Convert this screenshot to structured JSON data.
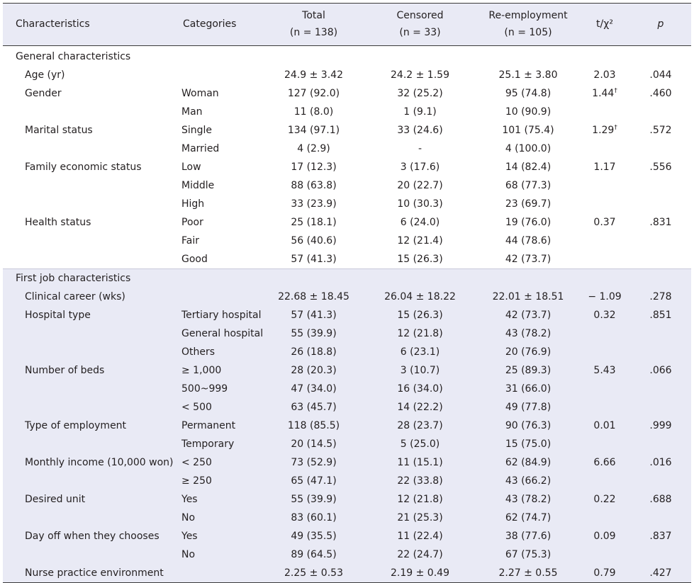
{
  "header": {
    "characteristics": "Characteristics",
    "categories": "Categories",
    "total": "Total",
    "total_n": "(n = 138)",
    "censored": "Censored",
    "censored_n": "(n = 33)",
    "reemployment": "Re-employment",
    "reemployment_n": "(n = 105)",
    "t_chi": "t/χ²",
    "p": "p"
  },
  "sections": [
    {
      "title": "General characteristics",
      "rows": [
        {
          "char": "Age (yr)",
          "cat": "",
          "total": "24.9 ± 3.42",
          "censored": "24.2 ± 1.59",
          "reemp": "25.1 ± 3.80",
          "stat": "2.03",
          "dagger": "",
          "p": ".044"
        },
        {
          "char": "Gender",
          "cat": "Woman",
          "total": "127 (92.0)",
          "censored": "32 (25.2)",
          "reemp": "95 (74.8)",
          "stat": "1.44",
          "dagger": "†",
          "p": ".460"
        },
        {
          "char": "",
          "cat": "Man",
          "total": "11 (8.0)",
          "censored": "1 (9.1)",
          "reemp": "10 (90.9)",
          "stat": "",
          "dagger": "",
          "p": ""
        },
        {
          "char": "Marital status",
          "cat": "Single",
          "total": "134 (97.1)",
          "censored": "33 (24.6)",
          "reemp": "101 (75.4)",
          "stat": "1.29",
          "dagger": "†",
          "p": ".572"
        },
        {
          "char": "",
          "cat": "Married",
          "total": "4 (2.9)",
          "censored": "-",
          "reemp": "4 (100.0)",
          "stat": "",
          "dagger": "",
          "p": ""
        },
        {
          "char": "Family economic status",
          "cat": "Low",
          "total": "17 (12.3)",
          "censored": "3 (17.6)",
          "reemp": "14 (82.4)",
          "stat": "1.17",
          "dagger": "",
          "p": ".556"
        },
        {
          "char": "",
          "cat": "Middle",
          "total": "88 (63.8)",
          "censored": "20 (22.7)",
          "reemp": "68 (77.3)",
          "stat": "",
          "dagger": "",
          "p": ""
        },
        {
          "char": "",
          "cat": "High",
          "total": "33 (23.9)",
          "censored": "10 (30.3)",
          "reemp": "23 (69.7)",
          "stat": "",
          "dagger": "",
          "p": ""
        },
        {
          "char": "Health status",
          "cat": "Poor",
          "total": "25 (18.1)",
          "censored": "6 (24.0)",
          "reemp": "19 (76.0)",
          "stat": "0.37",
          "dagger": "",
          "p": ".831"
        },
        {
          "char": "",
          "cat": "Fair",
          "total": "56 (40.6)",
          "censored": "12 (21.4)",
          "reemp": "44 (78.6)",
          "stat": "",
          "dagger": "",
          "p": ""
        },
        {
          "char": "",
          "cat": "Good",
          "total": "57 (41.3)",
          "censored": "15 (26.3)",
          "reemp": "42 (73.7)",
          "stat": "",
          "dagger": "",
          "p": ""
        }
      ]
    },
    {
      "title": "First job characteristics",
      "rows": [
        {
          "char": "Clinical career (wks)",
          "cat": "",
          "total": "22.68 ± 18.45",
          "censored": "26.04 ± 18.22",
          "reemp": "22.01 ± 18.51",
          "stat": "− 1.09",
          "dagger": "",
          "p": ".278"
        },
        {
          "char": "Hospital type",
          "cat": "Tertiary hospital",
          "total": "57 (41.3)",
          "censored": "15 (26.3)",
          "reemp": "42 (73.7)",
          "stat": "0.32",
          "dagger": "",
          "p": ".851"
        },
        {
          "char": "",
          "cat": "General hospital",
          "total": "55 (39.9)",
          "censored": "12 (21.8)",
          "reemp": "43 (78.2)",
          "stat": "",
          "dagger": "",
          "p": ""
        },
        {
          "char": "",
          "cat": "Others",
          "total": "26 (18.8)",
          "censored": "6 (23.1)",
          "reemp": "20 (76.9)",
          "stat": "",
          "dagger": "",
          "p": ""
        },
        {
          "char": "Number of beds",
          "cat": "≥ 1,000",
          "total": "28 (20.3)",
          "censored": "3 (10.7)",
          "reemp": "25 (89.3)",
          "stat": "5.43",
          "dagger": "",
          "p": ".066"
        },
        {
          "char": "",
          "cat": "500~999",
          "total": "47 (34.0)",
          "censored": "16 (34.0)",
          "reemp": "31 (66.0)",
          "stat": "",
          "dagger": "",
          "p": ""
        },
        {
          "char": "",
          "cat": "< 500",
          "total": "63 (45.7)",
          "censored": "14 (22.2)",
          "reemp": "49 (77.8)",
          "stat": "",
          "dagger": "",
          "p": ""
        },
        {
          "char": "Type of employment",
          "cat": "Permanent",
          "total": "118 (85.5)",
          "censored": "28 (23.7)",
          "reemp": "90 (76.3)",
          "stat": "0.01",
          "dagger": "",
          "p": ".999"
        },
        {
          "char": "",
          "cat": "Temporary",
          "total": "20 (14.5)",
          "censored": "5 (25.0)",
          "reemp": "15 (75.0)",
          "stat": "",
          "dagger": "",
          "p": ""
        },
        {
          "char": "Monthly income (10,000 won)",
          "cat": "< 250",
          "total": "73 (52.9)",
          "censored": "11 (15.1)",
          "reemp": "62 (84.9)",
          "stat": "6.66",
          "dagger": "",
          "p": ".016"
        },
        {
          "char": "",
          "cat": "≥ 250",
          "total": "65 (47.1)",
          "censored": "22 (33.8)",
          "reemp": "43 (66.2)",
          "stat": "",
          "dagger": "",
          "p": ""
        },
        {
          "char": "Desired unit",
          "cat": "Yes",
          "total": "55 (39.9)",
          "censored": "12 (21.8)",
          "reemp": "43 (78.2)",
          "stat": "0.22",
          "dagger": "",
          "p": ".688"
        },
        {
          "char": "",
          "cat": "No",
          "total": "83 (60.1)",
          "censored": "21 (25.3)",
          "reemp": "62 (74.7)",
          "stat": "",
          "dagger": "",
          "p": ""
        },
        {
          "char": "Day off when they chooses",
          "cat": "Yes",
          "total": "49 (35.5)",
          "censored": "11 (22.4)",
          "reemp": "38 (77.6)",
          "stat": "0.09",
          "dagger": "",
          "p": ".837"
        },
        {
          "char": "",
          "cat": "No",
          "total": "89 (64.5)",
          "censored": "22 (24.7)",
          "reemp": "67 (75.3)",
          "stat": "",
          "dagger": "",
          "p": ""
        },
        {
          "char": "Nurse practice environment",
          "cat": "",
          "total": "2.25 ± 0.53",
          "censored": "2.19 ± 0.49",
          "reemp": "2.27 ± 0.55",
          "stat": "0.79",
          "dagger": "",
          "p": ".427"
        }
      ]
    }
  ]
}
